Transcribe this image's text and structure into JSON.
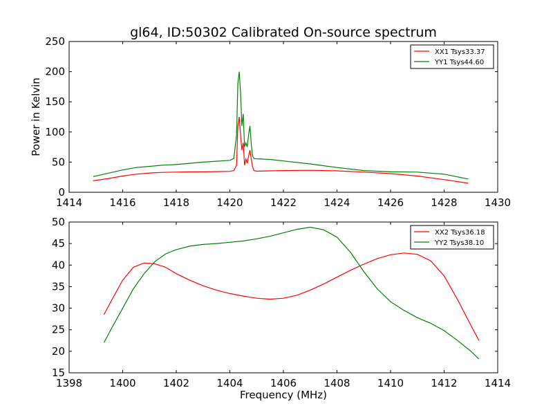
{
  "chart_data": [
    {
      "type": "line",
      "title": "gl64, ID:50302 Calibrated On-source spectrum",
      "xlabel": "",
      "ylabel": "Power in Kelvin",
      "xlim": [
        1414,
        1430
      ],
      "ylim": [
        0,
        250
      ],
      "xticks": [
        "1414",
        "1416",
        "1418",
        "1420",
        "1422",
        "1424",
        "1426",
        "1428",
        "1430"
      ],
      "yticks": [
        "0",
        "50",
        "100",
        "150",
        "200",
        "250"
      ],
      "grid": false,
      "legend_position": "top-right",
      "series": [
        {
          "name": "XX1 Tsys33.37",
          "color": "#ff0000",
          "x": [
            1414.9,
            1415.5,
            1416.0,
            1416.5,
            1417.0,
            1417.5,
            1418.0,
            1418.5,
            1419.0,
            1419.5,
            1420.0,
            1420.15,
            1420.25,
            1420.3,
            1420.35,
            1420.4,
            1420.45,
            1420.5,
            1420.55,
            1420.6,
            1420.65,
            1420.7,
            1420.75,
            1420.8,
            1420.85,
            1420.9,
            1421.0,
            1421.5,
            1422.0,
            1423.0,
            1424.0,
            1425.0,
            1426.0,
            1427.0,
            1428.0,
            1428.9
          ],
          "y": [
            19,
            23,
            27,
            30,
            32,
            33,
            33.5,
            33.8,
            34,
            34.3,
            34.8,
            36,
            45,
            110,
            125,
            95,
            70,
            82,
            45,
            55,
            48,
            60,
            70,
            55,
            42,
            36,
            35,
            35.5,
            36,
            36.5,
            35.5,
            33.5,
            31,
            27,
            21,
            15
          ]
        },
        {
          "name": "YY1 Tsys44.60",
          "color": "#008000",
          "x": [
            1414.9,
            1415.5,
            1416.0,
            1416.5,
            1417.0,
            1417.5,
            1418.0,
            1418.5,
            1419.0,
            1419.5,
            1420.0,
            1420.15,
            1420.25,
            1420.3,
            1420.35,
            1420.4,
            1420.45,
            1420.5,
            1420.55,
            1420.6,
            1420.65,
            1420.7,
            1420.75,
            1420.8,
            1420.85,
            1420.9,
            1421.0,
            1421.5,
            1422.0,
            1423.0,
            1424.0,
            1425.0,
            1426.0,
            1427.0,
            1428.0,
            1428.9
          ],
          "y": [
            26,
            32,
            37,
            41,
            43,
            45,
            46,
            48,
            50,
            51.5,
            53,
            56,
            95,
            180,
            200,
            165,
            110,
            130,
            75,
            82,
            75,
            95,
            110,
            80,
            60,
            56,
            55.5,
            54.5,
            52,
            47,
            41,
            36,
            34,
            33.5,
            30,
            22
          ]
        }
      ]
    },
    {
      "type": "line",
      "title": "",
      "xlabel": "Frequency (MHz)",
      "ylabel": "",
      "xlim": [
        1398,
        1414
      ],
      "ylim": [
        15,
        50
      ],
      "xticks": [
        "1398",
        "1400",
        "1402",
        "1404",
        "1406",
        "1408",
        "1410",
        "1412",
        "1414"
      ],
      "yticks": [
        "15",
        "20",
        "25",
        "30",
        "35",
        "40",
        "45",
        "50"
      ],
      "grid": false,
      "legend_position": "top-right",
      "series": [
        {
          "name": "XX2 Tsys36.18",
          "color": "#ff0000",
          "x": [
            1399.3,
            1399.6,
            1400.0,
            1400.4,
            1400.8,
            1401.2,
            1401.6,
            1402.0,
            1402.5,
            1403.0,
            1403.5,
            1404.0,
            1404.5,
            1405.0,
            1405.5,
            1406.0,
            1406.5,
            1407.0,
            1407.5,
            1408.0,
            1408.5,
            1409.0,
            1409.5,
            1410.0,
            1410.5,
            1411.0,
            1411.5,
            1412.0,
            1412.5,
            1413.0,
            1413.3
          ],
          "y": [
            28.5,
            32,
            36.5,
            39.5,
            40.5,
            40.3,
            39.5,
            38,
            36.5,
            35.2,
            34.2,
            33.4,
            32.8,
            32.3,
            32.1,
            32.3,
            33,
            34.2,
            35.6,
            37.2,
            38.8,
            40.2,
            41.5,
            42.4,
            42.8,
            42.5,
            41,
            37.5,
            32,
            26,
            22.5
          ]
        },
        {
          "name": "YY2 Tsys38.10",
          "color": "#008000",
          "x": [
            1399.3,
            1399.6,
            1400.0,
            1400.4,
            1400.8,
            1401.2,
            1401.6,
            1402.0,
            1402.5,
            1403.0,
            1403.5,
            1404.0,
            1404.5,
            1405.0,
            1405.5,
            1406.0,
            1406.5,
            1407.0,
            1407.5,
            1408.0,
            1408.5,
            1409.0,
            1409.5,
            1410.0,
            1410.5,
            1411.0,
            1411.5,
            1412.0,
            1412.5,
            1413.0,
            1413.3
          ],
          "y": [
            22,
            25.5,
            30,
            34.5,
            38,
            40.8,
            42.6,
            43.6,
            44.4,
            44.8,
            45,
            45.3,
            45.6,
            46.1,
            46.7,
            47.5,
            48.3,
            48.8,
            48.2,
            46.5,
            43,
            38.5,
            34.5,
            31.5,
            29.5,
            27.8,
            26.5,
            24.8,
            22.5,
            20,
            18.2
          ]
        }
      ]
    }
  ]
}
